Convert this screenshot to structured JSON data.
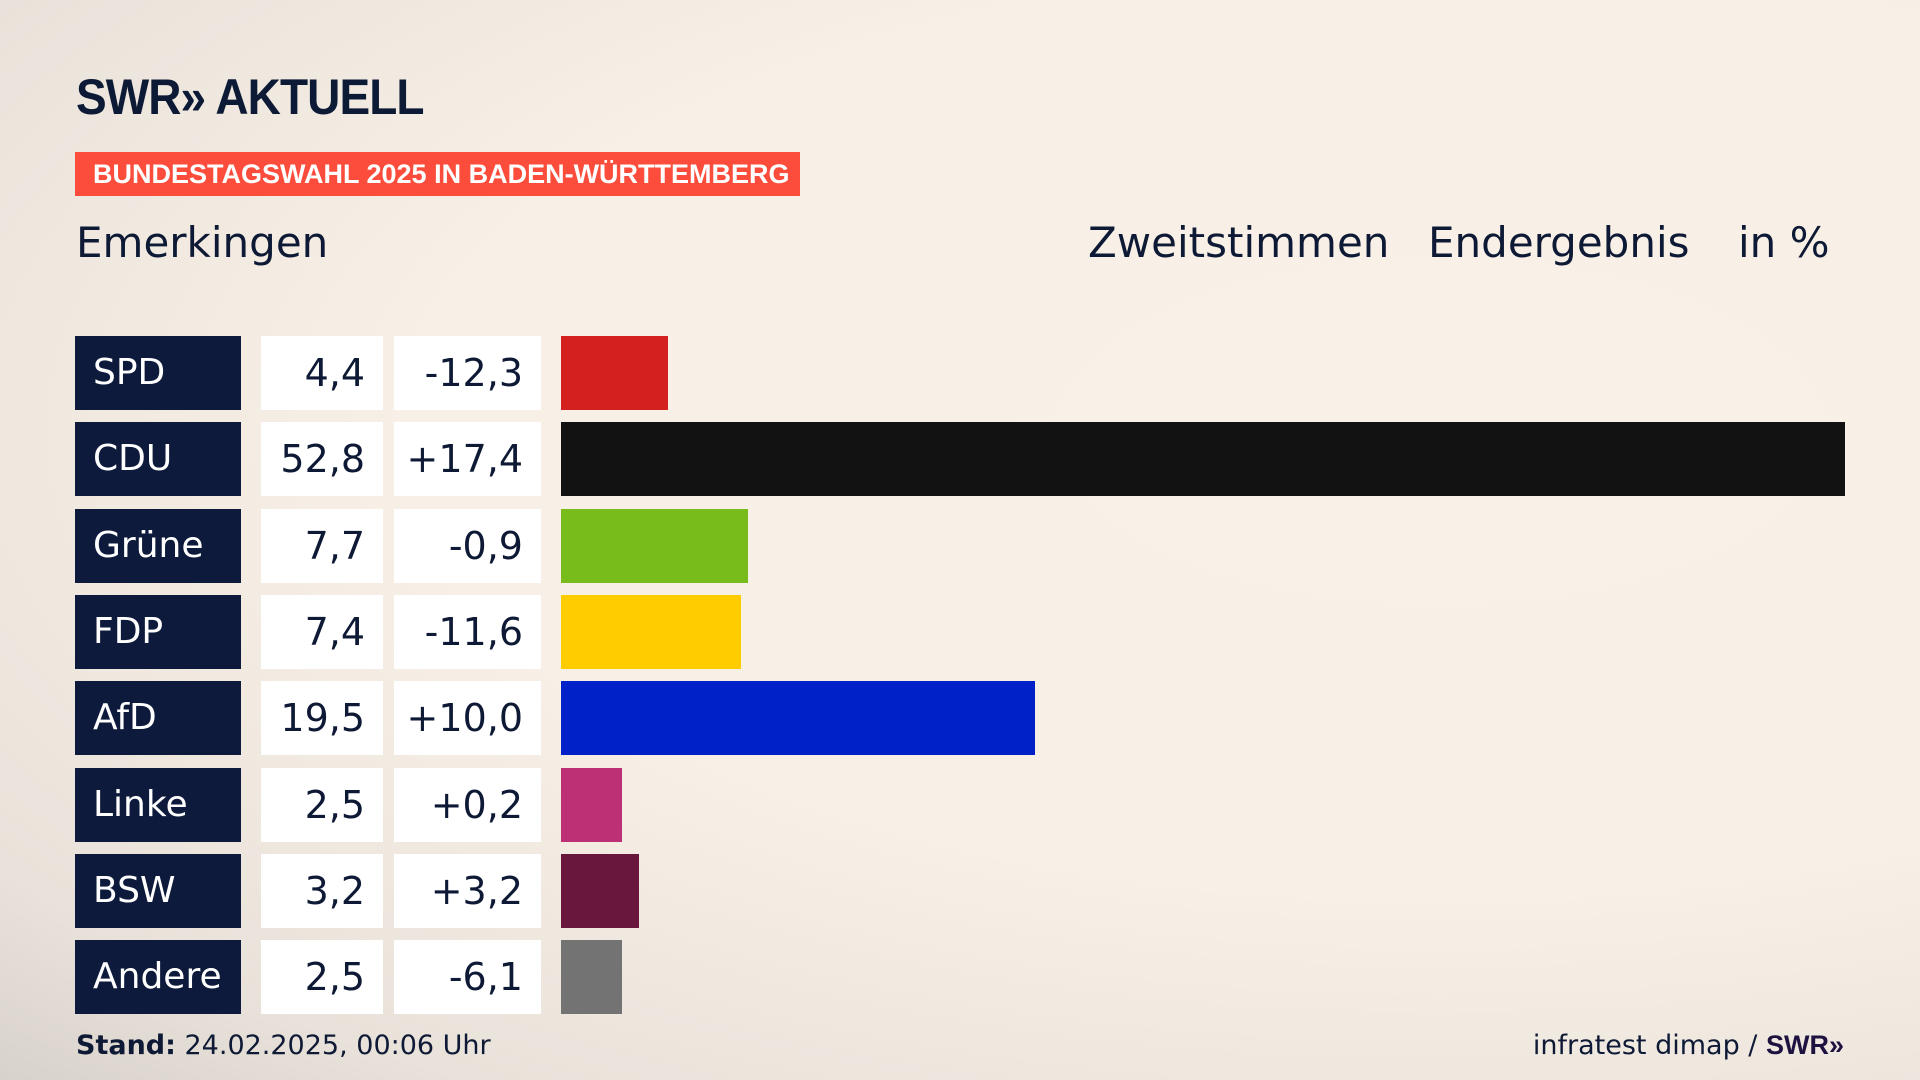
{
  "header": {
    "logo": "SWR» AKTUELL",
    "banner": "BUNDESTAGSWAHL 2025 IN BADEN-WÜRTTEMBERG",
    "place": "Emerkingen",
    "col1": "Zweitstimmen",
    "col2": "Endergebnis",
    "col3": "in %"
  },
  "chart_data": {
    "type": "bar",
    "title": "Emerkingen – Zweitstimmen Endergebnis in %",
    "categories": [
      "SPD",
      "CDU",
      "Grüne",
      "FDP",
      "AfD",
      "Linke",
      "BSW",
      "Andere"
    ],
    "values": [
      4.4,
      52.8,
      7.7,
      7.4,
      19.5,
      2.5,
      3.2,
      2.5
    ],
    "value_labels": [
      "4,4",
      "52,8",
      "7,7",
      "7,4",
      "19,5",
      "2,5",
      "3,2",
      "2,5"
    ],
    "diff_labels": [
      "-12,3",
      "+17,4",
      "-0,9",
      "-11,6",
      "+10,0",
      "+0,2",
      "+3,2",
      "-6,1"
    ],
    "colors": [
      "#d52020",
      "#121212",
      "#78bc1b",
      "#ffcc00",
      "#0021c8",
      "#bd3075",
      "#69173d",
      "#737373"
    ],
    "xlim": [
      0,
      52.8
    ]
  },
  "footer": {
    "stand_label": "Stand:",
    "stand_value": " 24.02.2025, 00:06 Uhr",
    "source": "infratest dimap / ",
    "source_logo": "SWR»"
  }
}
